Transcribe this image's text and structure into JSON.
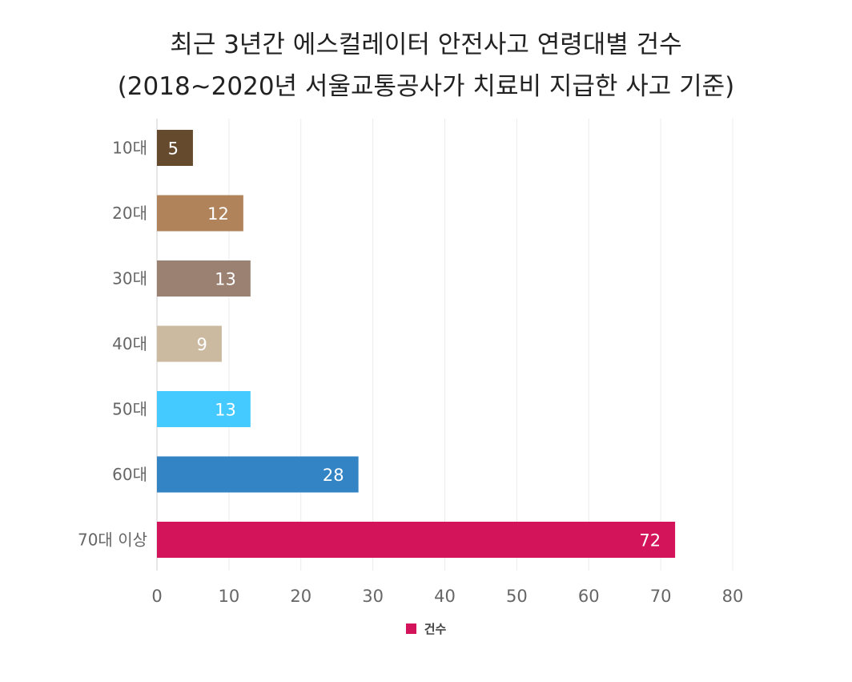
{
  "chart_data": {
    "type": "bar",
    "orientation": "horizontal",
    "title_lines": [
      "최근 3년간 에스컬레이터 안전사고 연령대별 건수",
      "(2018~2020년 서울교통공사가 치료비 지급한 사고 기준)"
    ],
    "categories": [
      "10대",
      "20대",
      "30대",
      "40대",
      "50대",
      "60대",
      "70대 이상"
    ],
    "series": [
      {
        "name": "건수",
        "values": [
          5,
          12,
          13,
          9,
          13,
          28,
          72
        ],
        "colors": [
          "#664a2e",
          "#b0835a",
          "#9b8172",
          "#cbb9a0",
          "#45caff",
          "#3384c4",
          "#d4145a"
        ],
        "legend_color": "#d4145a"
      }
    ],
    "xlim": [
      0,
      80
    ],
    "x_ticks": [
      0,
      10,
      20,
      30,
      40,
      50,
      60,
      70,
      80
    ],
    "grid": true,
    "legend_position": "bottom-center",
    "data_labels": "inside-end"
  }
}
